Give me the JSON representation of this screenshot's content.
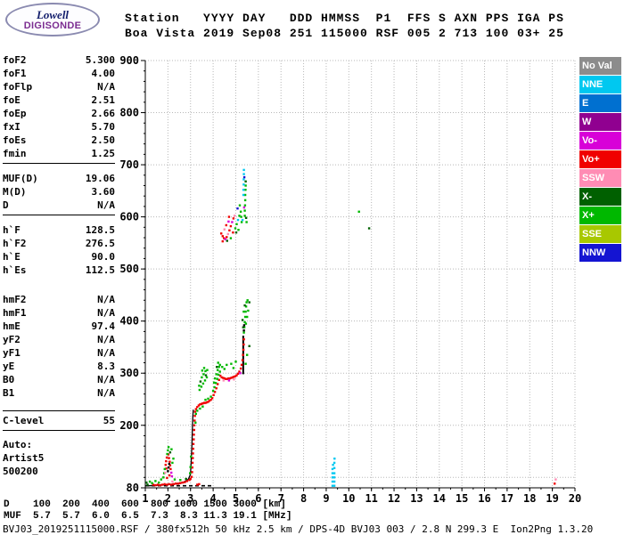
{
  "logo": {
    "line1": "Lowell",
    "line2": "DIGISONDE"
  },
  "header": {
    "line1": "Station   YYYY DAY   DDD HMMSS  P1  FFS S AXN PPS IGA PS",
    "line2": "Boa Vista 2019 Sep08 251 115000 RSF 005 2 713 100 03+ 25"
  },
  "params": {
    "groups": [
      [
        {
          "label": "foF2",
          "value": "5.300"
        },
        {
          "label": "foF1",
          "value": "4.00"
        },
        {
          "label": "foFlp",
          "value": "N/A"
        },
        {
          "label": "foE",
          "value": "2.51"
        },
        {
          "label": "foEp",
          "value": "2.66"
        },
        {
          "label": "fxI",
          "value": "5.70"
        },
        {
          "label": "foEs",
          "value": "2.50"
        },
        {
          "label": "fmin",
          "value": "1.25"
        }
      ],
      [
        {
          "label": "MUF(D)",
          "value": "19.06"
        },
        {
          "label": "M(D)",
          "value": "3.60"
        },
        {
          "label": "D",
          "value": "N/A"
        }
      ],
      [
        {
          "label": "h`F",
          "value": "128.5"
        },
        {
          "label": "h`F2",
          "value": "276.5"
        },
        {
          "label": "h`E",
          "value": "90.0"
        },
        {
          "label": "h`Es",
          "value": "112.5"
        }
      ],
      [
        {
          "label": "hmF2",
          "value": "N/A"
        },
        {
          "label": "hmF1",
          "value": "N/A"
        },
        {
          "label": "hmE",
          "value": "97.4"
        },
        {
          "label": "yF2",
          "value": "N/A"
        },
        {
          "label": "yF1",
          "value": "N/A"
        },
        {
          "label": "yE",
          "value": "8.3"
        },
        {
          "label": "B0",
          "value": "N/A"
        },
        {
          "label": "B1",
          "value": "N/A"
        }
      ],
      [
        {
          "label": "C-level",
          "value": "55"
        }
      ]
    ],
    "footer": [
      "Auto:",
      "Artist5",
      "500200"
    ]
  },
  "legend": {
    "items": [
      {
        "label": "No Val",
        "color": "#8c8c8c"
      },
      {
        "label": "NNE",
        "color": "#00c8f0"
      },
      {
        "label": "E",
        "color": "#0070d0"
      },
      {
        "label": "W",
        "color": "#900090"
      },
      {
        "label": "Vo-",
        "color": "#d800d8"
      },
      {
        "label": "Vo+",
        "color": "#f00000"
      },
      {
        "label": "SSW",
        "color": "#ff8cb4"
      },
      {
        "label": "X-",
        "color": "#006000"
      },
      {
        "label": "X+",
        "color": "#00b800"
      },
      {
        "label": "SSE",
        "color": "#a8c800"
      },
      {
        "label": "NNW",
        "color": "#1414d2"
      }
    ]
  },
  "chart_data": {
    "type": "scatter",
    "title": "Digisonde ionogram Boa Vista 2019 Sep08 251 115000",
    "x_range": [
      1,
      20
    ],
    "y_range": [
      80,
      900
    ],
    "x_ticks": [
      1,
      2,
      3,
      4,
      5,
      6,
      7,
      8,
      9,
      10,
      11,
      12,
      13,
      14,
      15,
      16,
      17,
      18,
      19,
      20
    ],
    "y_ticks": [
      900,
      800,
      700,
      600,
      500,
      400,
      300,
      200,
      80
    ],
    "grid": "dotted",
    "point_format": "[frequency_MHz, virtual_height_km, color_key]",
    "colors": {
      "K": "#000000",
      "R": "#f00000",
      "G": "#00b800",
      "DG": "#006000",
      "C": "#00c8f0",
      "M": "#d800d8",
      "P": "#ff8cb4",
      "B": "#1414d2",
      "O": "#a8c800",
      "E": "#0070d0",
      "W": "#900090"
    },
    "baseline": {
      "f_start": 1.0,
      "f_end": 4.0,
      "height": 84
    },
    "profile": [
      [
        1.15,
        84
      ],
      [
        1.6,
        85
      ],
      [
        2.0,
        86
      ],
      [
        2.4,
        88
      ],
      [
        2.7,
        91
      ],
      [
        2.9,
        96
      ],
      [
        3.0,
        106
      ],
      [
        3.03,
        132
      ],
      [
        3.06,
        162
      ],
      [
        3.08,
        192
      ],
      [
        3.1,
        216
      ],
      [
        3.12,
        230
      ]
    ],
    "vlines": [
      {
        "f": 5.33,
        "h1": 298,
        "h2": 372,
        "color": "K"
      }
    ],
    "points": [
      [
        1.35,
        86,
        "R"
      ],
      [
        1.45,
        85,
        "R"
      ],
      [
        1.55,
        86,
        "R"
      ],
      [
        1.65,
        85,
        "R"
      ],
      [
        1.75,
        86,
        "R"
      ],
      [
        1.85,
        87,
        "R"
      ],
      [
        1.95,
        86,
        "R"
      ],
      [
        2.05,
        87,
        "R"
      ],
      [
        2.15,
        86,
        "R"
      ],
      [
        2.25,
        87,
        "R"
      ],
      [
        2.35,
        88,
        "R"
      ],
      [
        2.45,
        88,
        "R"
      ],
      [
        2.55,
        89,
        "R"
      ],
      [
        2.65,
        90,
        "R"
      ],
      [
        2.75,
        91,
        "R"
      ],
      [
        2.85,
        93,
        "R"
      ],
      [
        2.95,
        95,
        "R"
      ],
      [
        3.0,
        97,
        "R"
      ],
      [
        3.3,
        86,
        "R"
      ],
      [
        3.38,
        87,
        "R"
      ],
      [
        1.9,
        124,
        "R"
      ],
      [
        1.92,
        131,
        "R"
      ],
      [
        1.95,
        138,
        "R"
      ],
      [
        2.02,
        144,
        "R"
      ],
      [
        2.05,
        137,
        "R"
      ],
      [
        2.08,
        130,
        "R"
      ],
      [
        2.1,
        123,
        "R"
      ],
      [
        2.12,
        116,
        "R"
      ],
      [
        1.93,
        117,
        "R"
      ],
      [
        2.07,
        104,
        "R"
      ],
      [
        1.96,
        99,
        "R"
      ],
      [
        3.05,
        101,
        "R"
      ],
      [
        3.07,
        110,
        "R"
      ],
      [
        3.08,
        119,
        "R"
      ],
      [
        3.09,
        128,
        "R"
      ],
      [
        3.1,
        137,
        "R"
      ],
      [
        3.11,
        146,
        "R"
      ],
      [
        3.12,
        155,
        "R"
      ],
      [
        3.13,
        164,
        "R"
      ],
      [
        3.14,
        173,
        "R"
      ],
      [
        3.15,
        182,
        "R"
      ],
      [
        3.16,
        191,
        "R"
      ],
      [
        3.17,
        200,
        "R"
      ],
      [
        3.18,
        209,
        "R"
      ],
      [
        3.19,
        218,
        "R"
      ],
      [
        3.2,
        226,
        "R"
      ],
      [
        3.24,
        231,
        "R"
      ],
      [
        3.3,
        235,
        "R"
      ],
      [
        3.36,
        238,
        "R"
      ],
      [
        3.42,
        240,
        "R"
      ],
      [
        3.48,
        241,
        "R"
      ],
      [
        3.54,
        242,
        "R"
      ],
      [
        3.6,
        243,
        "R"
      ],
      [
        3.66,
        243,
        "R"
      ],
      [
        3.72,
        244,
        "R"
      ],
      [
        3.78,
        245,
        "R"
      ],
      [
        3.84,
        247,
        "R"
      ],
      [
        3.9,
        249,
        "R"
      ],
      [
        3.96,
        252,
        "R"
      ],
      [
        4.02,
        258,
        "R"
      ],
      [
        4.08,
        264,
        "R"
      ],
      [
        4.14,
        271,
        "R"
      ],
      [
        4.2,
        279,
        "R"
      ],
      [
        4.26,
        287,
        "R"
      ],
      [
        4.32,
        295,
        "R"
      ],
      [
        4.38,
        292,
        "R"
      ],
      [
        4.44,
        291,
        "R"
      ],
      [
        4.5,
        290,
        "R"
      ],
      [
        4.56,
        289,
        "R"
      ],
      [
        4.62,
        289,
        "R"
      ],
      [
        4.68,
        290,
        "R"
      ],
      [
        4.74,
        290,
        "R"
      ],
      [
        4.8,
        291,
        "R"
      ],
      [
        4.86,
        292,
        "R"
      ],
      [
        4.92,
        293,
        "R"
      ],
      [
        4.98,
        294,
        "R"
      ],
      [
        5.04,
        296,
        "R"
      ],
      [
        5.1,
        299,
        "R"
      ],
      [
        5.16,
        303,
        "R"
      ],
      [
        5.22,
        309,
        "R"
      ],
      [
        5.26,
        316,
        "R"
      ],
      [
        5.3,
        325,
        "R"
      ],
      [
        5.32,
        335,
        "R"
      ],
      [
        5.34,
        345,
        "R"
      ],
      [
        5.35,
        355,
        "R"
      ],
      [
        5.36,
        365,
        "R"
      ],
      [
        4.36,
        568,
        "R"
      ],
      [
        4.42,
        563,
        "R"
      ],
      [
        4.48,
        559,
        "R"
      ],
      [
        4.6,
        561,
        "R"
      ],
      [
        4.72,
        574,
        "R"
      ],
      [
        4.78,
        582,
        "R"
      ],
      [
        4.9,
        597,
        "R"
      ],
      [
        4.58,
        584,
        "R"
      ],
      [
        4.42,
        553,
        "R"
      ],
      [
        4.88,
        570,
        "R"
      ],
      [
        4.7,
        600,
        "R"
      ],
      [
        19.1,
        88,
        "R"
      ],
      [
        1.2,
        92,
        "G"
      ],
      [
        1.3,
        89,
        "G"
      ],
      [
        1.45,
        93,
        "G"
      ],
      [
        1.6,
        90,
        "G"
      ],
      [
        1.7,
        96,
        "G"
      ],
      [
        2.3,
        96,
        "G"
      ],
      [
        2.55,
        95,
        "G"
      ],
      [
        1.8,
        100,
        "G"
      ],
      [
        1.83,
        108,
        "G"
      ],
      [
        1.86,
        116,
        "G"
      ],
      [
        1.97,
        145,
        "G"
      ],
      [
        2.0,
        152,
        "G"
      ],
      [
        2.03,
        158,
        "G"
      ],
      [
        2.2,
        128,
        "G"
      ],
      [
        2.24,
        136,
        "G"
      ],
      [
        2.16,
        154,
        "G"
      ],
      [
        3.0,
        120,
        "G"
      ],
      [
        3.02,
        140,
        "G"
      ],
      [
        3.22,
        205,
        "G"
      ],
      [
        3.24,
        222,
        "G"
      ],
      [
        2.98,
        108,
        "G"
      ],
      [
        3.3,
        228,
        "G"
      ],
      [
        3.42,
        232,
        "G"
      ],
      [
        3.54,
        236,
        "G"
      ],
      [
        3.66,
        249,
        "G"
      ],
      [
        3.78,
        251,
        "G"
      ],
      [
        3.9,
        255,
        "G"
      ],
      [
        3.4,
        268,
        "G"
      ],
      [
        3.48,
        274,
        "G"
      ],
      [
        3.56,
        280,
        "G"
      ],
      [
        3.64,
        286,
        "G"
      ],
      [
        3.72,
        292,
        "G"
      ],
      [
        3.5,
        292,
        "G"
      ],
      [
        3.58,
        298,
        "G"
      ],
      [
        3.66,
        304,
        "G"
      ],
      [
        3.6,
        310,
        "G"
      ],
      [
        3.74,
        306,
        "G"
      ],
      [
        3.52,
        305,
        "G"
      ],
      [
        3.38,
        276,
        "G"
      ],
      [
        4.0,
        266,
        "G"
      ],
      [
        4.06,
        273,
        "G"
      ],
      [
        4.12,
        281,
        "G"
      ],
      [
        4.18,
        289,
        "G"
      ],
      [
        4.24,
        297,
        "G"
      ],
      [
        4.08,
        290,
        "G"
      ],
      [
        4.14,
        298,
        "G"
      ],
      [
        4.2,
        306,
        "G"
      ],
      [
        4.04,
        282,
        "G"
      ],
      [
        4.26,
        312,
        "G"
      ],
      [
        4.3,
        303,
        "G"
      ],
      [
        4.3,
        316,
        "G"
      ],
      [
        4.22,
        320,
        "G"
      ],
      [
        4.4,
        312,
        "G"
      ],
      [
        4.6,
        316,
        "G"
      ],
      [
        4.8,
        318,
        "G"
      ],
      [
        5.0,
        322,
        "G"
      ],
      [
        4.5,
        308,
        "G"
      ],
      [
        4.9,
        310,
        "G"
      ],
      [
        5.36,
        378,
        "G"
      ],
      [
        5.38,
        388,
        "G"
      ],
      [
        5.4,
        398,
        "G"
      ],
      [
        5.42,
        408,
        "G"
      ],
      [
        5.44,
        418,
        "G"
      ],
      [
        5.46,
        428,
        "G"
      ],
      [
        5.48,
        436,
        "G"
      ],
      [
        5.35,
        418,
        "G"
      ],
      [
        5.52,
        440,
        "G"
      ],
      [
        5.5,
        408,
        "G"
      ],
      [
        5.55,
        420,
        "G"
      ],
      [
        5.45,
        395,
        "G"
      ],
      [
        5.5,
        335,
        "G"
      ],
      [
        5.44,
        318,
        "G"
      ],
      [
        4.78,
        559,
        "G"
      ],
      [
        4.98,
        578,
        "G"
      ],
      [
        5.04,
        586,
        "G"
      ],
      [
        5.16,
        602,
        "G"
      ],
      [
        5.22,
        610,
        "G"
      ],
      [
        5.12,
        575,
        "G"
      ],
      [
        5.26,
        590,
        "G"
      ],
      [
        5.24,
        600,
        "G"
      ],
      [
        5.18,
        622,
        "G"
      ],
      [
        5.4,
        602,
        "G"
      ],
      [
        5.4,
        612,
        "G"
      ],
      [
        5.41,
        622,
        "G"
      ],
      [
        5.42,
        632,
        "G"
      ],
      [
        5.42,
        642,
        "G"
      ],
      [
        5.43,
        652,
        "G"
      ],
      [
        5.44,
        660,
        "G"
      ],
      [
        5.48,
        590,
        "G"
      ],
      [
        10.45,
        610,
        "G"
      ],
      [
        1.05,
        90,
        "DG"
      ],
      [
        1.1,
        86,
        "DG"
      ],
      [
        2.8,
        97,
        "DG"
      ],
      [
        2.1,
        148,
        "DG"
      ],
      [
        3.44,
        284,
        "DG"
      ],
      [
        3.68,
        296,
        "DG"
      ],
      [
        4.16,
        312,
        "DG"
      ],
      [
        5.4,
        430,
        "DG"
      ],
      [
        5.3,
        402,
        "DG"
      ],
      [
        5.6,
        436,
        "DG"
      ],
      [
        5.33,
        388,
        "DG"
      ],
      [
        5.6,
        352,
        "DG"
      ],
      [
        4.62,
        554,
        "DG"
      ],
      [
        5.02,
        570,
        "DG"
      ],
      [
        5.46,
        598,
        "DG"
      ],
      [
        5.44,
        668,
        "DG"
      ],
      [
        10.9,
        578,
        "DG"
      ],
      [
        2.0,
        112,
        "K"
      ],
      [
        2.03,
        119,
        "K"
      ],
      [
        2.06,
        126,
        "K"
      ],
      [
        5.36,
        382,
        "K"
      ],
      [
        5.37,
        392,
        "K"
      ],
      [
        2.15,
        109,
        "M"
      ],
      [
        2.18,
        102,
        "M"
      ],
      [
        4.7,
        286,
        "M"
      ],
      [
        5.2,
        300,
        "M"
      ],
      [
        4.54,
        557,
        "M"
      ],
      [
        4.84,
        590,
        "M"
      ],
      [
        4.68,
        591,
        "M"
      ],
      [
        5.37,
        618,
        "M"
      ],
      [
        1.88,
        109,
        "P"
      ],
      [
        2.2,
        92,
        "P"
      ],
      [
        4.46,
        286,
        "P"
      ],
      [
        4.92,
        288,
        "P"
      ],
      [
        4.66,
        567,
        "P"
      ],
      [
        4.95,
        602,
        "P"
      ],
      [
        4.5,
        576,
        "P"
      ],
      [
        19.15,
        96,
        "P"
      ],
      [
        5.1,
        594,
        "C"
      ],
      [
        5.3,
        594,
        "C"
      ],
      [
        5.34,
        642,
        "C"
      ],
      [
        5.34,
        652,
        "C"
      ],
      [
        5.35,
        662,
        "C"
      ],
      [
        5.35,
        672,
        "C"
      ],
      [
        5.36,
        682,
        "C"
      ],
      [
        5.36,
        690,
        "C"
      ],
      [
        9.28,
        84,
        "C"
      ],
      [
        9.28,
        92,
        "C"
      ],
      [
        9.28,
        100,
        "C"
      ],
      [
        9.28,
        108,
        "C"
      ],
      [
        9.28,
        116,
        "C"
      ],
      [
        9.3,
        124,
        "C"
      ],
      [
        9.36,
        84,
        "C"
      ],
      [
        9.36,
        92,
        "C"
      ],
      [
        9.36,
        100,
        "C"
      ],
      [
        9.36,
        108,
        "C"
      ],
      [
        9.36,
        118,
        "C"
      ],
      [
        9.36,
        128,
        "C"
      ],
      [
        9.37,
        136,
        "C"
      ],
      [
        5.08,
        616,
        "B"
      ],
      [
        5.38,
        676,
        "B"
      ]
    ]
  },
  "dmuf": {
    "rows": [
      {
        "label": "D",
        "values": [
          "100",
          "200",
          "400",
          "600",
          "800",
          "1000",
          "1500",
          "3000"
        ],
        "unit": "[km]"
      },
      {
        "label": "MUF",
        "values": [
          "5.7",
          "5.7",
          "6.0",
          "6.5",
          "7.3",
          "8.3",
          "11.3",
          "19.1"
        ],
        "unit": "[MHz]"
      }
    ]
  },
  "file_info": "BVJ03_2019251115000.RSF / 380fx512h 50 kHz 2.5 km / DPS-4D BVJ03 003 / 2.8 N 299.3 E  Ion2Png 1.3.20"
}
